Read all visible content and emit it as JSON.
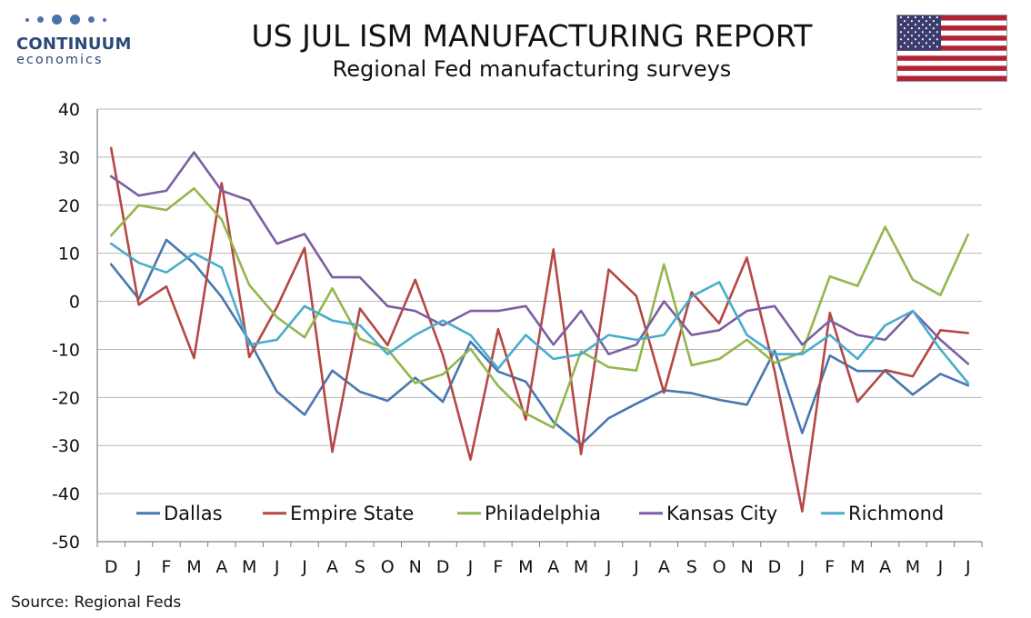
{
  "logo": {
    "brand": "CONTINUUM",
    "sub": "economics"
  },
  "header": {
    "title": "US JUL ISM MANUFACTURING REPORT",
    "subtitle": "Regional Fed manufacturing surveys"
  },
  "flag": {
    "name": "us-flag-icon"
  },
  "source": "Source: Regional Feds",
  "chart_data": {
    "type": "line",
    "categories": [
      "D",
      "J",
      "F",
      "M",
      "A",
      "M",
      "J",
      "J",
      "A",
      "S",
      "O",
      "N",
      "D",
      "J",
      "F",
      "M",
      "A",
      "M",
      "J",
      "J",
      "A",
      "S",
      "O",
      "N",
      "D",
      "J",
      "F",
      "M",
      "A",
      "M",
      "J",
      "J"
    ],
    "ylim": [
      -50,
      40
    ],
    "yticks": [
      -50,
      -40,
      -30,
      -20,
      -10,
      0,
      10,
      20,
      30,
      40
    ],
    "grid": true,
    "legend_position": "bottom-inside",
    "series": [
      {
        "name": "Dallas",
        "color": "#4877b0",
        "values": [
          7.7,
          0.5,
          12.8,
          7.9,
          0.9,
          -8.2,
          -18.8,
          -23.6,
          -14.4,
          -18.8,
          -20.7,
          -15.9,
          -20.9,
          -8.4,
          -14.6,
          -16.7,
          -25.1,
          -29.8,
          -24.3,
          -21.3,
          -18.5,
          -19.1,
          -20.5,
          -21.5,
          -10.3,
          -27.4,
          -11.3,
          -14.5,
          -14.5,
          -19.4,
          -15.1,
          -17.5
        ]
      },
      {
        "name": "Empire State",
        "color": "#b54744",
        "values": [
          31.9,
          -0.7,
          3.1,
          -11.8,
          24.6,
          -11.6,
          -1.2,
          11.1,
          -31.3,
          -1.5,
          -9.1,
          4.5,
          -11.2,
          -32.9,
          -5.8,
          -24.6,
          10.8,
          -31.8,
          6.6,
          1.1,
          -19.0,
          1.9,
          -4.6,
          9.1,
          -14.5,
          -43.7,
          -2.4,
          -20.9,
          -14.3,
          -15.6,
          -6.0,
          -6.6
        ]
      },
      {
        "name": "Philadelphia",
        "color": "#94b64e",
        "values": [
          13.7,
          20.0,
          19.0,
          23.5,
          17.0,
          3.4,
          -3.3,
          -7.5,
          2.7,
          -7.8,
          -10.0,
          -17.0,
          -15.2,
          -9.9,
          -17.6,
          -23.3,
          -26.3,
          -10.4,
          -13.7,
          -14.4,
          7.7,
          -13.3,
          -12.0,
          -8.0,
          -12.8,
          -10.6,
          5.2,
          3.2,
          15.5,
          4.5,
          1.3,
          13.9
        ]
      },
      {
        "name": "Kansas City",
        "color": "#7b5ea2",
        "values": [
          26.0,
          22.0,
          23.0,
          31.0,
          23.0,
          21.0,
          12.0,
          14.0,
          5.0,
          5.0,
          -1.0,
          -2.0,
          -5.0,
          -2.0,
          -2.0,
          -1.0,
          -9.0,
          -2.0,
          -11.0,
          -9.0,
          0.0,
          -7.0,
          -6.0,
          -2.0,
          -1.0,
          -9.0,
          -4.0,
          -7.0,
          -8.0,
          -2.0,
          -8.0,
          -13.0
        ]
      },
      {
        "name": "Richmond",
        "color": "#4aaccc",
        "values": [
          12.0,
          8.0,
          6.0,
          10.0,
          7.0,
          -9.0,
          -8.0,
          -1.0,
          -4.0,
          -5.0,
          -11.0,
          -7.0,
          -4.0,
          -7.0,
          -14.0,
          -7.0,
          -12.0,
          -11.0,
          -7.0,
          -8.0,
          -7.0,
          1.0,
          4.0,
          -7.0,
          -11.0,
          -11.0,
          -7.0,
          -12.0,
          -5.0,
          -2.0,
          -10.0,
          -17.0
        ]
      }
    ]
  }
}
